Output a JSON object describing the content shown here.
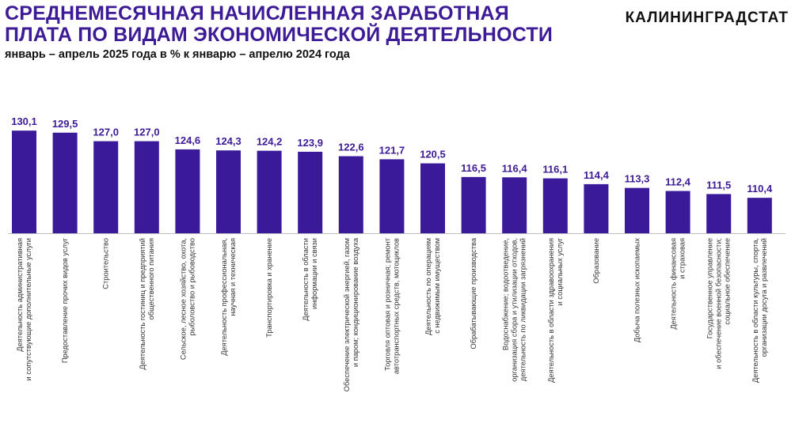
{
  "header": {
    "title_lines": [
      "СРЕДНЕМЕСЯЧНАЯ НАЧИСЛЕННАЯ ЗАРАБОТНАЯ",
      "ПЛАТА ПО ВИДАМ ЭКОНОМИЧЕСКОЙ ДЕЯТЕЛЬНОСТИ"
    ],
    "subtitle": "январь – апрель 2025 года в % к январю – апрелю 2024 года",
    "brand": "КАЛИНИНГРАДСТАТ"
  },
  "colors": {
    "bar": "#3a1a99",
    "label": "#3d1a96",
    "axis": "#bfbfbf"
  },
  "chart_data": {
    "type": "bar",
    "title": "СРЕДНЕМЕСЯЧНАЯ НАЧИСЛЕННАЯ ЗАРАБОТНАЯ ПЛАТА ПО ВИДАМ ЭКОНОМИЧЕСКОЙ ДЕЯТЕЛЬНОСТИ",
    "subtitle": "январь – апрель 2025 года в % к январю – апрелю 2024 года",
    "categories": [
      [
        "Деятельность административная",
        "и сопутствующие дополнительные услуги"
      ],
      [
        "Предоставление прочих видов услуг"
      ],
      [
        "Строительство"
      ],
      [
        "Деятельность гостиниц и предприятий",
        "общественного питания"
      ],
      [
        "Сельское, лесное хозяйство, охота,",
        "рыболовство и рыбоводство"
      ],
      [
        "Деятельность профессиональная,",
        "научная и техническая"
      ],
      [
        "Транспортировка и хранение"
      ],
      [
        "Деятельность в области",
        "информации и связи"
      ],
      [
        "Обеспечение электрической энергией, газом",
        "и паром; кондиционирование воздуха"
      ],
      [
        "Торговля оптовая и розничная; ремонт",
        "автотранспортных средств, мотоциклов"
      ],
      [
        "Деятельность по операциям",
        "с недвижимым имуществом"
      ],
      [
        "Обрабатывающие производства"
      ],
      [
        "Водоснабжение; водоотведение,",
        "организация сбора и утилизации отходов,",
        "деятельность по ликвидации загрязнений"
      ],
      [
        "Деятельность в области здравоохранения",
        "и социальных услуг"
      ],
      [
        "Образование"
      ],
      [
        "Добыча полезных ископаемых"
      ],
      [
        "Деятельность финансовая",
        "и страховая"
      ],
      [
        "Государственное управление",
        "и обеспечение военной безопасности;",
        "социальное обеспечение"
      ],
      [
        "Деятельность в области культуры, спорта,",
        "организации досуга и развлечений"
      ]
    ],
    "values": [
      130.1,
      129.5,
      127.0,
      127.0,
      124.6,
      124.3,
      124.2,
      123.9,
      122.6,
      121.7,
      120.5,
      116.5,
      116.4,
      116.1,
      114.4,
      113.3,
      112.4,
      111.5,
      110.4
    ],
    "value_labels": [
      "130,1",
      "129,5",
      "127,0",
      "127,0",
      "124,6",
      "124,3",
      "124,2",
      "123,9",
      "122,6",
      "121,7",
      "120,5",
      "116,5",
      "116,4",
      "116,1",
      "114,4",
      "113,3",
      "112,4",
      "111,5",
      "110,4"
    ],
    "ylim": [
      100,
      132
    ],
    "grid": false,
    "legend": "none"
  }
}
